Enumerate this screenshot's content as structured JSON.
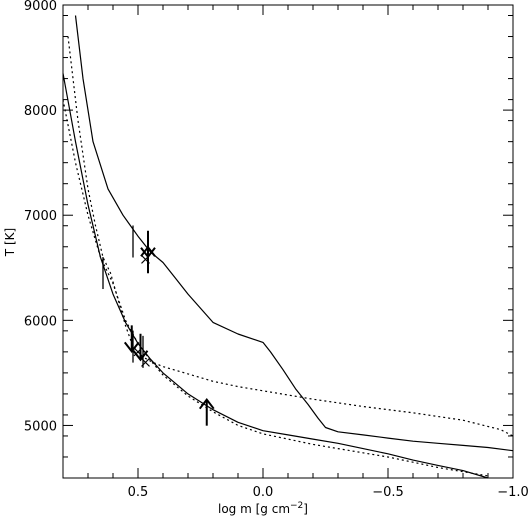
{
  "chart_data": {
    "type": "line",
    "title": "",
    "xlabel": "log m [g cm",
    "xlabel_exponent": "−2",
    "xlabel_close": "]",
    "ylabel": "T [K]",
    "xlim": [
      0.8,
      -1.0
    ],
    "ylim": [
      4500,
      9000
    ],
    "x_ticks": [
      0.5,
      0.0,
      -0.5,
      -1.0
    ],
    "x_tick_labels": [
      "0.5",
      "0.0",
      "−0.5",
      "−1.0"
    ],
    "y_ticks": [
      5000,
      6000,
      7000,
      8000,
      9000
    ],
    "y_tick_labels": [
      "5000",
      "6000",
      "7000",
      "8000",
      "9000"
    ],
    "grid": false,
    "series": [
      {
        "style": "solid",
        "x": [
          0.75,
          0.72,
          0.68,
          0.62,
          0.56,
          0.5,
          0.45,
          0.4,
          0.35,
          0.3,
          0.2,
          0.1,
          0.0,
          -0.03,
          -0.08,
          -0.13,
          -0.18,
          -0.22,
          -0.25,
          -0.3,
          -0.4,
          -0.5,
          -0.6,
          -0.7,
          -0.8,
          -0.9,
          -1.0
        ],
        "y": [
          8900,
          8300,
          7700,
          7250,
          7000,
          6800,
          6650,
          6550,
          6400,
          6250,
          5980,
          5870,
          5790,
          5700,
          5530,
          5350,
          5200,
          5070,
          4980,
          4940,
          4910,
          4880,
          4850,
          4830,
          4810,
          4790,
          4760
        ]
      },
      {
        "style": "solid",
        "x": [
          0.8,
          0.75,
          0.7,
          0.65,
          0.6,
          0.55,
          0.5,
          0.45,
          0.4,
          0.3,
          0.2,
          0.1,
          0.0,
          -0.1,
          -0.2,
          -0.3,
          -0.4,
          -0.5,
          -0.6,
          -0.7,
          -0.8,
          -0.9
        ],
        "y": [
          8350,
          7700,
          7100,
          6600,
          6250,
          5980,
          5780,
          5630,
          5500,
          5300,
          5150,
          5030,
          4950,
          4910,
          4870,
          4830,
          4780,
          4730,
          4670,
          4620,
          4570,
          4500
        ]
      },
      {
        "style": "dotted",
        "x": [
          0.78,
          0.74,
          0.7,
          0.67,
          0.64,
          0.61,
          0.58,
          0.55,
          0.52,
          0.48,
          0.44,
          0.4,
          0.3,
          0.2,
          0.1,
          0.0,
          -0.2,
          -0.4,
          -0.6,
          -0.8,
          -0.95,
          -1.0
        ],
        "y": [
          8700,
          7900,
          7250,
          6900,
          6600,
          6450,
          6200,
          5950,
          5750,
          5650,
          5600,
          5560,
          5490,
          5420,
          5370,
          5330,
          5250,
          5180,
          5120,
          5050,
          4960,
          4900
        ]
      },
      {
        "style": "dotted",
        "x": [
          0.8,
          0.75,
          0.7,
          0.65,
          0.6,
          0.55,
          0.5,
          0.45,
          0.4,
          0.3,
          0.2,
          0.1,
          0.0,
          -0.1,
          -0.2,
          -0.3,
          -0.4,
          -0.5,
          -0.6,
          -0.7,
          -0.8,
          -0.9
        ],
        "y": [
          8100,
          7500,
          7000,
          6600,
          6350,
          6000,
          5780,
          5620,
          5480,
          5280,
          5130,
          5000,
          4920,
          4870,
          4820,
          4780,
          4740,
          4700,
          4650,
          4600,
          4560,
          4520
        ]
      }
    ],
    "markers": [
      {
        "kind": "bar",
        "x": 0.52,
        "y": 6750
      },
      {
        "kind": "bar",
        "x": 0.64,
        "y": 6450
      },
      {
        "kind": "bar",
        "x": 0.52,
        "y": 5750
      },
      {
        "kind": "bar",
        "x": 0.48,
        "y": 5700
      },
      {
        "kind": "cross",
        "x": 0.47,
        "y": 6580
      },
      {
        "kind": "cross",
        "x": 0.5,
        "y": 5700
      },
      {
        "kind": "cross",
        "x": 0.47,
        "y": 5600
      },
      {
        "kind": "arrow-up",
        "x": 0.46,
        "y": 6600
      },
      {
        "kind": "arrow-down",
        "x": 0.46,
        "y": 6700
      },
      {
        "kind": "arrow-down",
        "x": 0.525,
        "y": 5800
      },
      {
        "kind": "arrow-down",
        "x": 0.49,
        "y": 5720
      },
      {
        "kind": "arrow-up",
        "x": 0.225,
        "y": 5150
      }
    ]
  }
}
